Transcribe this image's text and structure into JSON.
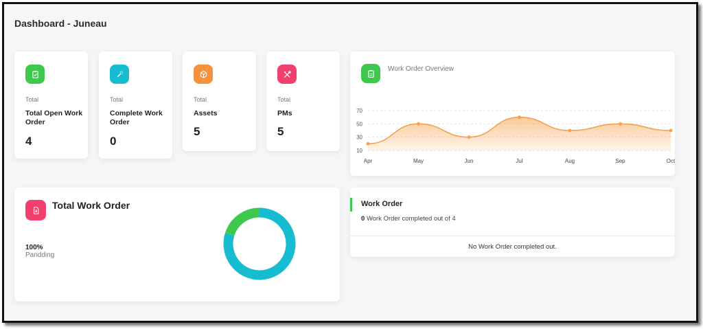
{
  "page": {
    "title": "Dashboard - Juneau"
  },
  "stats": [
    {
      "total_label": "Total",
      "name": "Total Open Work Order",
      "value": "4",
      "icon": "clipboard-check-icon",
      "color": "#3ec94e"
    },
    {
      "total_label": "Total",
      "name": "Complete Work Order",
      "value": "0",
      "icon": "magic-wand-icon",
      "color": "#18bcd0"
    },
    {
      "total_label": "Total",
      "name": "Assets",
      "value": "5",
      "icon": "cube-icon",
      "color": "#f7913b"
    },
    {
      "total_label": "Total",
      "name": "PMs",
      "value": "5",
      "icon": "tools-icon",
      "color": "#f2406e"
    }
  ],
  "overview": {
    "title": "Work Order Overview",
    "icon": "clipboard-icon",
    "icon_color": "#3ec94e",
    "chart_data": {
      "type": "area",
      "categories": [
        "Apr",
        "May",
        "Jun",
        "Jul",
        "Aug",
        "Sep",
        "Oct"
      ],
      "values": [
        20,
        50,
        30,
        60,
        40,
        50,
        40
      ],
      "y_ticks": [
        "70",
        "50",
        "30",
        "10"
      ],
      "ylim": [
        10,
        70
      ],
      "grid": true,
      "color": "#f5a04a"
    }
  },
  "total_work_order": {
    "title": "Total Work Order",
    "icon": "document-icon",
    "icon_color": "#f2406e",
    "percent": "100%",
    "percent_label": "Pandding",
    "chart_data": {
      "type": "pie",
      "slices": [
        {
          "value": 80,
          "color": "#18bcd0"
        },
        {
          "value": 20,
          "color": "#3ec94e"
        }
      ]
    }
  },
  "work_order": {
    "title": "Work Order",
    "count": "0",
    "desc": "Work Order completed out of 4",
    "empty_message": "No Work Order completed out.",
    "accent": "#3ec94e"
  }
}
